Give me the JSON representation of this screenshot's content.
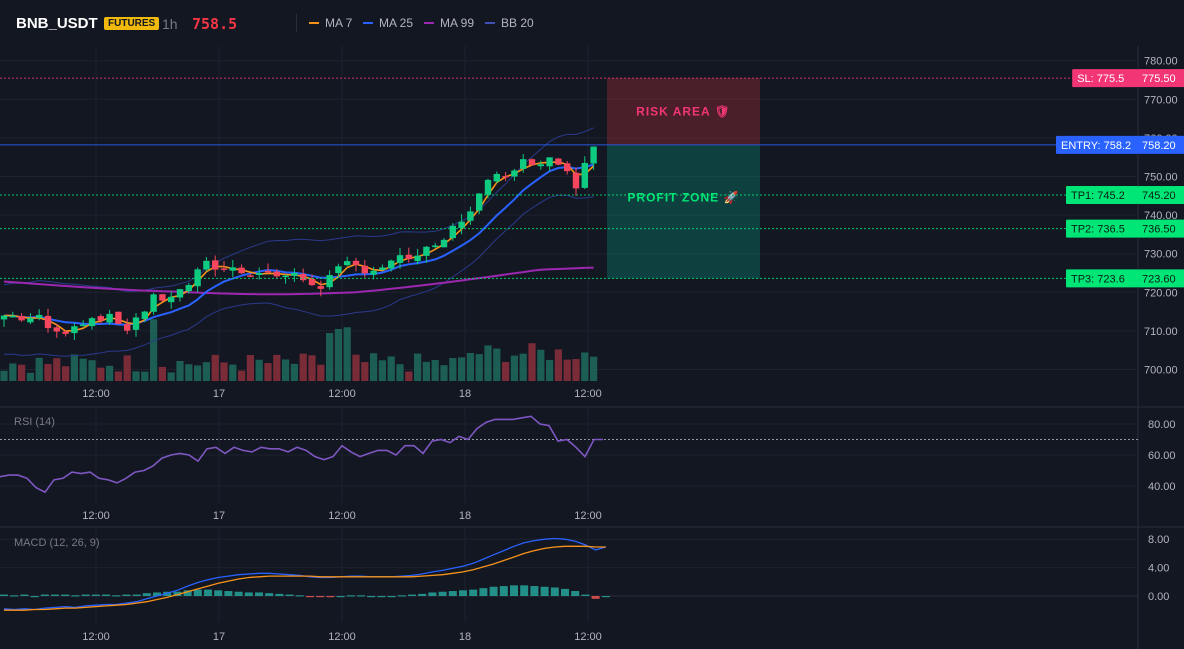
{
  "header": {
    "symbol": "BNB_USDT",
    "badge": "FUTURES",
    "timeframe": "1h",
    "last_price": "758.5"
  },
  "legend": [
    {
      "label": "MA 7",
      "color": "#f7931a"
    },
    {
      "label": "MA 25",
      "color": "#2962ff"
    },
    {
      "label": "MA 99",
      "color": "#9c27b0"
    },
    {
      "label": "BB 20",
      "color": "#2a3a8c"
    }
  ],
  "chart_data": [
    {
      "type": "candlestick",
      "y_ticks": [
        700,
        710,
        720,
        730,
        740,
        750,
        760,
        770,
        780
      ],
      "ylim": [
        696,
        781.5
      ],
      "x_ticks": [
        "12:00",
        "17",
        "12:00",
        "18",
        "12:00"
      ],
      "price_lines": [
        {
          "label": "SL: 775.5",
          "value": 775.5,
          "value_label": "775.50",
          "color": "#f23675"
        },
        {
          "label": "ENTRY: 758.2",
          "value": 758.2,
          "value_label": "758.20",
          "color": "#2962ff"
        },
        {
          "label": "TP1: 745.2",
          "value": 745.2,
          "value_label": "745.20",
          "color": "#00e676"
        },
        {
          "label": "TP2: 736.5",
          "value": 736.5,
          "value_label": "736.50",
          "color": "#00e676"
        },
        {
          "label": "TP3: 723.6",
          "value": 723.6,
          "value_label": "723.60",
          "color": "#00e676"
        }
      ],
      "zones": {
        "risk_label": "RISK AREA 🛡",
        "profit_label": "PROFIT ZONE 🚀"
      }
    },
    {
      "type": "line",
      "title": "RSI (14)",
      "y_ticks": [
        40,
        60,
        80
      ],
      "ylim": [
        30,
        90
      ],
      "x_ticks": [
        "12:00",
        "17",
        "12:00",
        "18",
        "12:00"
      ],
      "overbought": 70,
      "values": [
        46,
        47,
        47,
        45,
        39,
        36,
        44,
        45,
        49,
        48,
        49,
        45,
        44,
        42,
        45,
        49,
        50,
        53,
        58,
        60,
        61,
        60,
        56,
        64,
        65,
        61,
        65,
        63,
        62,
        65,
        64,
        64,
        62,
        65,
        63,
        59,
        57,
        59,
        66,
        62,
        59,
        61,
        63,
        63,
        60,
        66,
        66,
        61,
        69,
        70,
        68,
        72,
        70,
        77,
        81,
        83,
        83,
        83,
        84,
        85,
        80,
        79,
        69,
        70,
        65,
        59,
        70,
        70
      ]
    },
    {
      "type": "bar+line",
      "title": "MACD (12, 26, 9)",
      "y_ticks": [
        0,
        4,
        8
      ],
      "y_tick_labels": [
        "0.00",
        "4.00",
        "8.00"
      ],
      "ylim": [
        -4,
        9.5
      ],
      "x_ticks": [
        "12:00",
        "17",
        "12:00",
        "18",
        "12:00"
      ],
      "macd": [
        -1.8,
        -1.9,
        -1.8,
        -1.9,
        -1.7,
        -1.6,
        -1.5,
        -1.6,
        -1.4,
        -1.3,
        -1.2,
        -1.2,
        -1.0,
        -0.8,
        -0.4,
        0.0,
        0.4,
        0.8,
        1.4,
        1.9,
        2.3,
        2.6,
        2.8,
        3.0,
        3.1,
        3.2,
        3.2,
        3.1,
        3.0,
        2.9,
        2.7,
        2.6,
        2.6,
        2.7,
        2.8,
        2.8,
        2.7,
        2.7,
        2.7,
        2.8,
        2.9,
        3.1,
        3.4,
        3.6,
        3.9,
        4.2,
        4.6,
        5.2,
        5.8,
        6.4,
        7.0,
        7.5,
        7.8,
        8.0,
        8.1,
        8.0,
        7.7,
        7.2,
        6.5,
        6.9
      ],
      "signal": [
        -2.0,
        -2.0,
        -2.0,
        -1.9,
        -1.9,
        -1.8,
        -1.7,
        -1.7,
        -1.6,
        -1.5,
        -1.4,
        -1.3,
        -1.2,
        -1.0,
        -0.8,
        -0.5,
        -0.2,
        0.2,
        0.6,
        1.0,
        1.4,
        1.8,
        2.1,
        2.4,
        2.6,
        2.7,
        2.8,
        2.8,
        2.8,
        2.8,
        2.8,
        2.7,
        2.7,
        2.7,
        2.7,
        2.7,
        2.7,
        2.7,
        2.7,
        2.7,
        2.7,
        2.8,
        2.9,
        3.0,
        3.2,
        3.4,
        3.7,
        4.1,
        4.5,
        5.0,
        5.5,
        6.0,
        6.4,
        6.7,
        6.9,
        7.0,
        7.0,
        7.0,
        6.9,
        6.9
      ],
      "histogram": [
        0.2,
        0.1,
        0.2,
        0.0,
        0.2,
        0.2,
        0.2,
        0.1,
        0.2,
        0.2,
        0.2,
        0.1,
        0.2,
        0.2,
        0.4,
        0.5,
        0.6,
        0.6,
        0.8,
        0.9,
        0.9,
        0.8,
        0.7,
        0.6,
        0.5,
        0.5,
        0.4,
        0.3,
        0.2,
        0.1,
        -0.1,
        -0.1,
        -0.1,
        0.0,
        0.1,
        0.1,
        0.0,
        0.0,
        0.0,
        0.1,
        0.2,
        0.3,
        0.5,
        0.6,
        0.7,
        0.8,
        0.9,
        1.1,
        1.3,
        1.4,
        1.5,
        1.5,
        1.4,
        1.3,
        1.2,
        1.0,
        0.7,
        0.2,
        -0.4,
        0.0
      ]
    }
  ]
}
